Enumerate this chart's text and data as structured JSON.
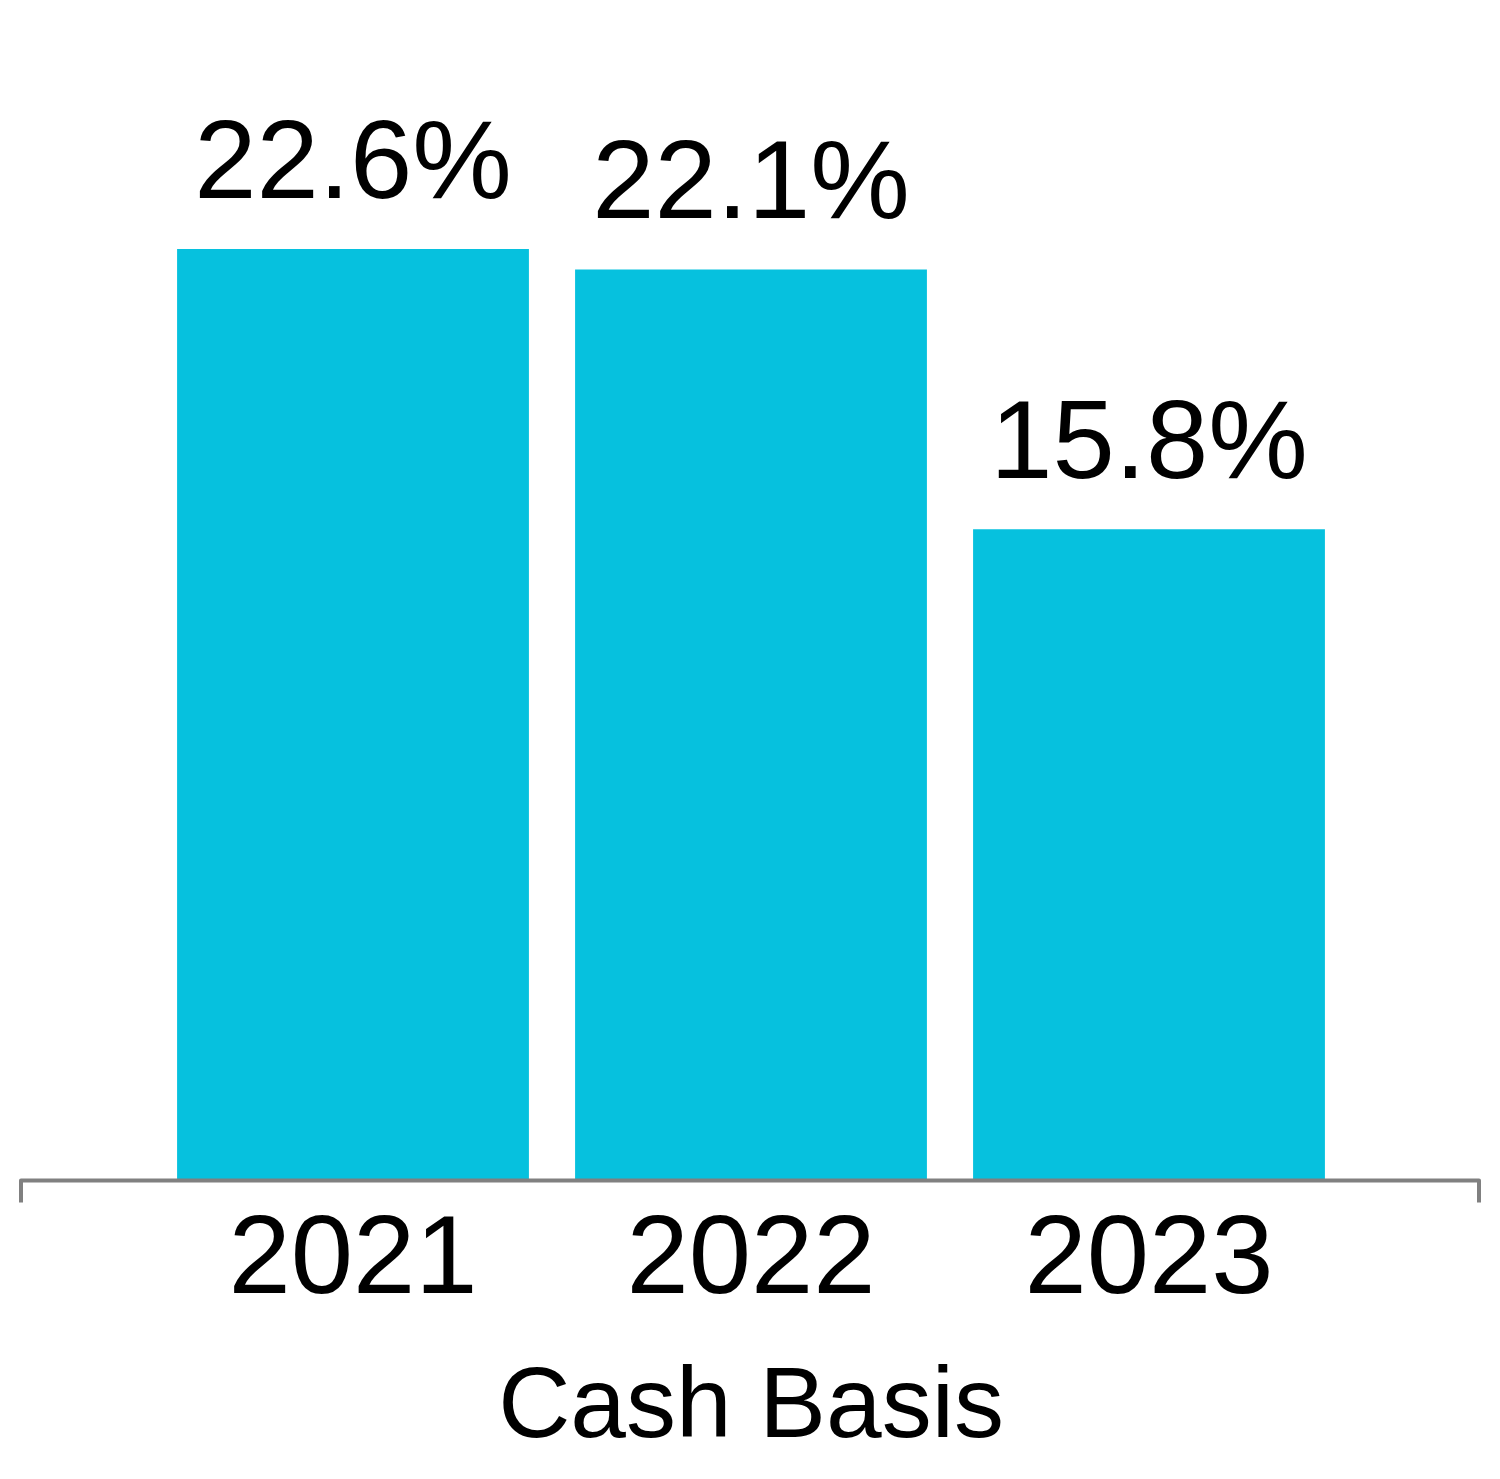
{
  "chart_data": {
    "type": "bar",
    "xlabel": "Cash Basis",
    "categories": [
      "2021",
      "2022",
      "2023"
    ],
    "values": [
      22.6,
      22.1,
      15.8
    ],
    "color": "#06c1de",
    "value_labels": [
      "22.6%",
      "22.1%",
      "15.8%"
    ],
    "tick_labels": "x",
    "grid": false,
    "legend": false
  }
}
